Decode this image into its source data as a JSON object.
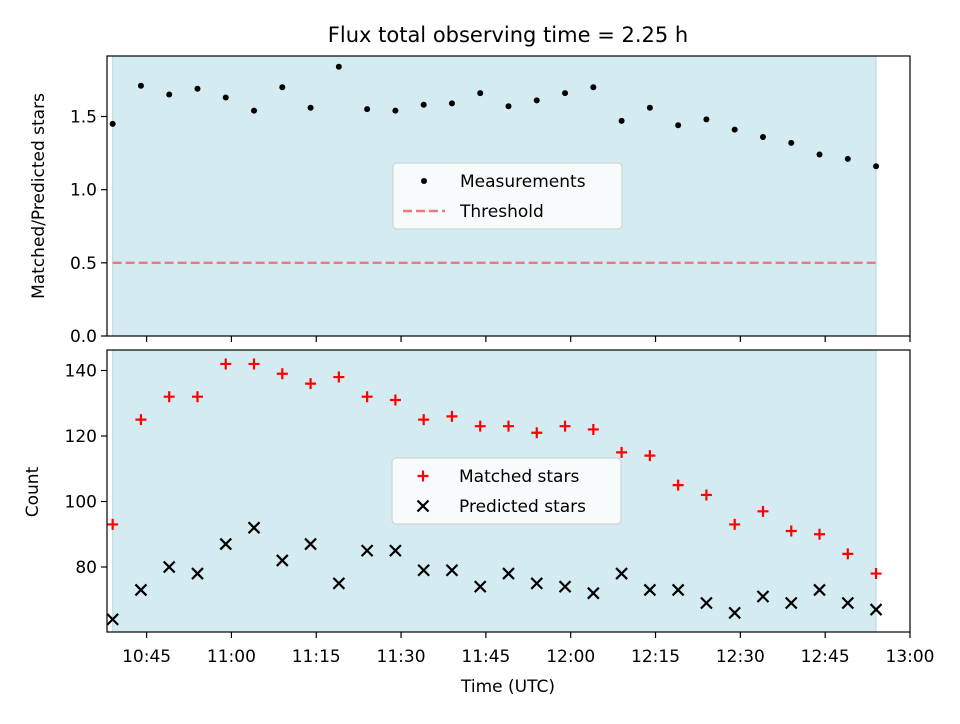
{
  "chart_data": {
    "title": "Flux total observing time = 2.25 h",
    "xlabel": "Time (UTC)",
    "x_ticks": [
      "10:45",
      "11:00",
      "11:15",
      "11:30",
      "11:45",
      "12:00",
      "12:15",
      "12:30",
      "12:45",
      "13:00"
    ],
    "x_range": [
      "10:38",
      "13:00"
    ],
    "shaded_interval": [
      "10:39",
      "12:54"
    ],
    "shade_color": "#d4ebf1",
    "times": [
      "10:39",
      "10:44",
      "10:49",
      "10:54",
      "10:59",
      "11:04",
      "11:09",
      "11:14",
      "11:19",
      "11:24",
      "11:29",
      "11:34",
      "11:39",
      "11:44",
      "11:49",
      "11:54",
      "11:59",
      "12:04",
      "12:09",
      "12:14",
      "12:19",
      "12:24",
      "12:29",
      "12:34",
      "12:39",
      "12:44",
      "12:49",
      "12:54"
    ],
    "panels": [
      {
        "type": "scatter",
        "ylabel": "Matched/Predicted stars",
        "ylim": [
          0,
          1.9
        ],
        "y_ticks": [
          "0.0",
          "0.5",
          "1.0",
          "1.5"
        ],
        "legend_position": "center",
        "series": [
          {
            "name": "Measurements",
            "marker": "dot",
            "color": "#000000",
            "values": [
              1.45,
              1.71,
              1.65,
              1.69,
              1.63,
              1.54,
              1.7,
              1.56,
              1.84,
              1.55,
              1.54,
              1.58,
              1.59,
              1.66,
              1.57,
              1.61,
              1.66,
              1.7,
              1.47,
              1.56,
              1.44,
              1.48,
              1.41,
              1.36,
              1.32,
              1.24,
              1.21,
              1.16
            ]
          },
          {
            "name": "Threshold",
            "type": "line",
            "style": "dashed",
            "color": "#f07878",
            "value": 0.5
          }
        ]
      },
      {
        "type": "scatter",
        "ylabel": "Count",
        "ylim": [
          60,
          146
        ],
        "y_ticks": [
          "80",
          "100",
          "120",
          "140"
        ],
        "legend_position": "center",
        "series": [
          {
            "name": "Matched stars",
            "marker": "plus",
            "color": "#ff0000",
            "values": [
              93,
              125,
              132,
              132,
              142,
              142,
              139,
              136,
              138,
              132,
              131,
              125,
              126,
              123,
              123,
              121,
              123,
              122,
              115,
              114,
              105,
              102,
              93,
              97,
              91,
              90,
              84,
              78
            ]
          },
          {
            "name": "Predicted stars",
            "marker": "x",
            "color": "#000000",
            "values": [
              64,
              73,
              80,
              78,
              87,
              92,
              82,
              87,
              75,
              85,
              85,
              79,
              79,
              74,
              78,
              75,
              74,
              72,
              78,
              73,
              73,
              69,
              66,
              71,
              69,
              73,
              69,
              67
            ]
          }
        ]
      }
    ]
  }
}
